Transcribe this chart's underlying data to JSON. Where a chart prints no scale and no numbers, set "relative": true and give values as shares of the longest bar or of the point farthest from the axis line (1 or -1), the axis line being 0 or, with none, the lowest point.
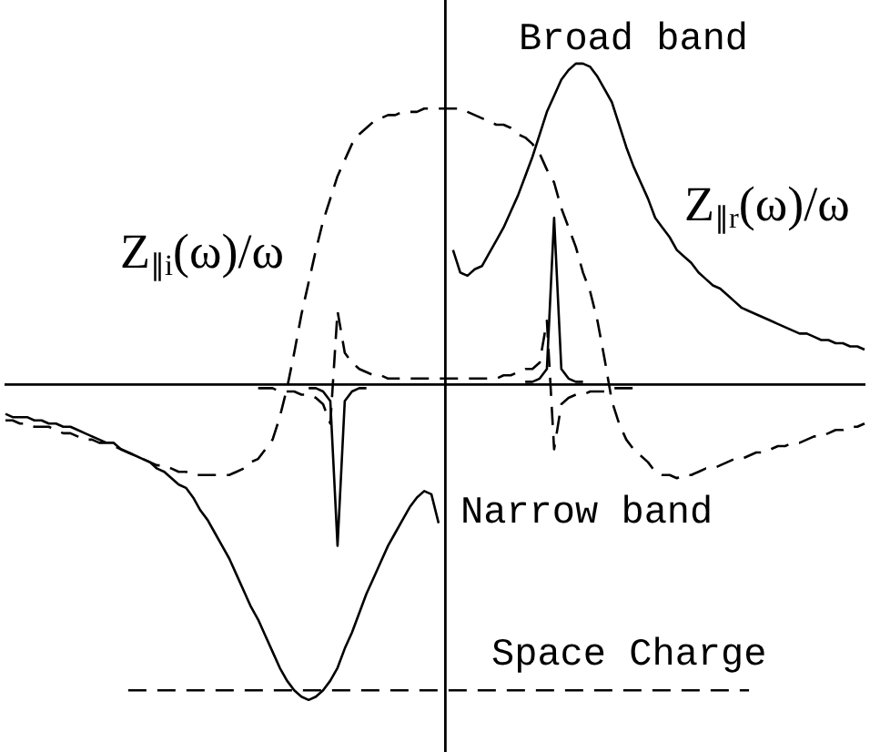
{
  "chart_data": {
    "type": "line",
    "relative": true,
    "marker": "none",
    "annotations": [
      "Broad band",
      "Narrow band"
    ],
    "categories": [
      null,
      null,
      null,
      null,
      null,
      null,
      null,
      null,
      null,
      null,
      null,
      null,
      null,
      null,
      null,
      null,
      null,
      null,
      null,
      null,
      null,
      null,
      null,
      null,
      null,
      null,
      null,
      null,
      null,
      null,
      null,
      null,
      null,
      null,
      null,
      null,
      null,
      null,
      null,
      null,
      null,
      null,
      null,
      null,
      null,
      null,
      null,
      null,
      null,
      null,
      null,
      null,
      null,
      null,
      null,
      null,
      null,
      null,
      null,
      null,
      null,
      null,
      null,
      null,
      null,
      null,
      null,
      null,
      null,
      null,
      null,
      null,
      null,
      null,
      null,
      null,
      null,
      null,
      null,
      null,
      null,
      null,
      null,
      null,
      null,
      null,
      null,
      null,
      null,
      null,
      null,
      null,
      null,
      null,
      null,
      null,
      null,
      null,
      null,
      null,
      null,
      null,
      null,
      null,
      null,
      null,
      null,
      null,
      null,
      null,
      null,
      null,
      null,
      null,
      null,
      null,
      null,
      null,
      null,
      null
    ],
    "series": [
      {
        "name": "Z$_{∥r}$(ω)/ω",
        "color": "#000000",
        "line_style": "solid",
        "values": [
          -0.09,
          -0.1,
          -0.1,
          -0.1,
          -0.11,
          -0.11,
          -0.12,
          -0.12,
          -0.13,
          -0.13,
          -0.14,
          -0.15,
          -0.16,
          -0.17,
          -0.18,
          -0.18,
          -0.2,
          -0.21,
          -0.22,
          -0.23,
          -0.24,
          -0.26,
          -0.27,
          -0.29,
          -0.31,
          -0.32,
          -0.35,
          -0.39,
          -0.42,
          -0.46,
          -0.5,
          -0.54,
          -0.59,
          -0.64,
          -0.69,
          -0.73,
          -0.78,
          -0.83,
          -0.88,
          -0.92,
          -0.95,
          -0.97,
          -0.98,
          -0.97,
          -0.95,
          -0.92,
          -0.88,
          -0.82,
          -0.77,
          -0.71,
          -0.65,
          -0.6,
          -0.55,
          -0.5,
          -0.46,
          -0.42,
          -0.38,
          -0.35,
          -0.33,
          -0.34,
          -0.43,
          null,
          0.42,
          0.35,
          0.34,
          0.36,
          0.37,
          0.41,
          0.45,
          0.49,
          0.54,
          0.59,
          0.65,
          0.71,
          0.78,
          0.85,
          0.9,
          0.95,
          0.98,
          1,
          1,
          0.99,
          0.96,
          0.92,
          0.88,
          0.81,
          0.74,
          0.68,
          0.63,
          0.58,
          0.52,
          0.49,
          0.46,
          0.42,
          0.4,
          0.38,
          0.35,
          0.33,
          0.31,
          0.3,
          0.28,
          0.26,
          0.24,
          0.23,
          0.22,
          0.21,
          0.2,
          0.19,
          0.18,
          0.17,
          0.16,
          0.16,
          0.15,
          0.14,
          0.14,
          0.13,
          0.13,
          0.12,
          0.12,
          0.11
        ]
      },
      {
        "name": "Z$_{∥i}$(ω)/ω",
        "color": "#000000",
        "line_style": "dashed",
        "values": [
          -0.11,
          -0.11,
          -0.12,
          -0.12,
          -0.13,
          -0.13,
          -0.13,
          -0.14,
          -0.15,
          -0.15,
          -0.16,
          -0.17,
          -0.17,
          -0.18,
          -0.18,
          -0.19,
          -0.2,
          -0.21,
          -0.22,
          -0.23,
          -0.24,
          -0.25,
          -0.25,
          -0.26,
          -0.27,
          -0.27,
          -0.28,
          -0.28,
          -0.28,
          -0.28,
          -0.28,
          -0.28,
          -0.27,
          -0.26,
          -0.24,
          -0.23,
          -0.2,
          -0.17,
          -0.1,
          -0.01,
          0.1,
          0.22,
          0.32,
          0.42,
          0.51,
          0.58,
          0.65,
          0.7,
          0.75,
          0.78,
          0.8,
          0.82,
          0.83,
          0.84,
          0.84,
          0.85,
          0.85,
          0.85,
          0.86,
          0.86,
          0.86,
          0.86,
          0.86,
          0.86,
          0.85,
          0.84,
          0.83,
          0.82,
          0.81,
          0.81,
          0.8,
          0.78,
          0.77,
          0.75,
          0.72,
          0.67,
          0.63,
          0.55,
          0.49,
          0.43,
          0.35,
          0.29,
          0.2,
          0.08,
          -0.05,
          -0.12,
          -0.17,
          -0.2,
          -0.22,
          -0.24,
          -0.27,
          -0.28,
          -0.28,
          -0.29,
          -0.28,
          -0.28,
          -0.27,
          -0.26,
          -0.26,
          -0.25,
          -0.24,
          -0.23,
          -0.23,
          -0.22,
          -0.21,
          -0.21,
          -0.2,
          -0.19,
          -0.19,
          -0.18,
          -0.18,
          -0.17,
          -0.16,
          -0.16,
          -0.15,
          -0.14,
          -0.14,
          -0.13,
          -0.13,
          -0.12
        ]
      },
      {
        "color": "#000000",
        "line_style": "solid",
        "values": [
          null,
          null,
          null,
          null,
          null,
          null,
          null,
          null,
          null,
          null,
          null,
          null,
          null,
          null,
          null,
          null,
          null,
          null,
          null,
          null,
          null,
          null,
          null,
          null,
          null,
          null,
          null,
          null,
          null,
          null,
          null,
          null,
          null,
          null,
          null,
          null,
          null,
          null,
          null,
          null,
          null,
          null,
          -0.01,
          -0.01,
          -0.02,
          -0.05,
          -0.5,
          -0.05,
          -0.02,
          -0.01,
          -0.01,
          null,
          null,
          null,
          null,
          null,
          null,
          null,
          null,
          null,
          null,
          null,
          null,
          null,
          null,
          null,
          null,
          null,
          null,
          null,
          null,
          null,
          0.01,
          0.01,
          0.02,
          0.05,
          0.52,
          0.05,
          0.02,
          0.01,
          0.01,
          null,
          null,
          null,
          null,
          null,
          null,
          null,
          null,
          null,
          null,
          null,
          null,
          null,
          null,
          null,
          null,
          null,
          null,
          null,
          null,
          null,
          null,
          null,
          null,
          null,
          null,
          null,
          null,
          null,
          null,
          null,
          null,
          null,
          null,
          null,
          null,
          null,
          null,
          null
        ]
      },
      {
        "color": "#000000",
        "line_style": "dashed",
        "values": [
          null,
          null,
          null,
          null,
          null,
          null,
          null,
          null,
          null,
          null,
          null,
          null,
          null,
          null,
          null,
          null,
          null,
          null,
          null,
          null,
          null,
          null,
          null,
          null,
          null,
          null,
          null,
          null,
          null,
          null,
          null,
          null,
          null,
          null,
          null,
          -0.01,
          -0.01,
          -0.01,
          -0.02,
          -0.02,
          -0.02,
          -0.03,
          -0.03,
          -0.04,
          -0.06,
          -0.12,
          0.23,
          0.1,
          0.07,
          0.05,
          0.04,
          0.03,
          0.03,
          0.02,
          0.02,
          0.02,
          0.02,
          0.02,
          0.02,
          0.02,
          0.02,
          0.02,
          0.02,
          0.02,
          0.02,
          0.02,
          0.02,
          0.02,
          0.02,
          0.03,
          0.03,
          0.04,
          0.05,
          0.05,
          0.07,
          0.2,
          -0.2,
          -0.06,
          -0.04,
          -0.03,
          -0.03,
          -0.02,
          -0.02,
          -0.02,
          -0.01,
          -0.01,
          -0.01,
          -0.01,
          null,
          null,
          null,
          null,
          null,
          null,
          null,
          null,
          null,
          null,
          null,
          null,
          null,
          null,
          null,
          null,
          null,
          null,
          null,
          null,
          null,
          null,
          null,
          null,
          null,
          null,
          null,
          null,
          null,
          null,
          null,
          null
        ]
      },
      {
        "name": "Space Charge",
        "color": "#000000",
        "line_style": "dashed",
        "values": [
          null,
          null,
          null,
          null,
          null,
          null,
          null,
          null,
          null,
          null,
          null,
          null,
          null,
          null,
          null,
          null,
          null,
          -0.95,
          -0.95,
          -0.95,
          -0.95,
          -0.95,
          -0.95,
          -0.95,
          -0.95,
          -0.95,
          -0.95,
          -0.95,
          -0.95,
          -0.95,
          -0.95,
          -0.95,
          -0.95,
          -0.95,
          -0.95,
          -0.95,
          -0.95,
          -0.95,
          -0.95,
          -0.95,
          -0.95,
          -0.95,
          -0.95,
          -0.95,
          -0.95,
          -0.95,
          -0.95,
          -0.95,
          -0.95,
          -0.95,
          -0.95,
          -0.95,
          -0.95,
          -0.95,
          -0.95,
          -0.95,
          -0.95,
          -0.95,
          -0.95,
          -0.95,
          -0.95,
          -0.95,
          -0.95,
          -0.95,
          -0.95,
          -0.95,
          -0.95,
          -0.95,
          -0.95,
          -0.95,
          -0.95,
          -0.95,
          -0.95,
          -0.95,
          -0.95,
          -0.95,
          -0.95,
          -0.95,
          -0.95,
          -0.95,
          -0.95,
          -0.95,
          -0.95,
          -0.95,
          -0.95,
          -0.95,
          -0.95,
          -0.95,
          -0.95,
          -0.95,
          -0.95,
          -0.95,
          -0.95,
          -0.95,
          -0.95,
          -0.95,
          -0.95,
          -0.95,
          -0.95,
          -0.95,
          -0.95,
          -0.95,
          -0.95,
          -0.95,
          null,
          null,
          null,
          null,
          null,
          null,
          null,
          null,
          null,
          null,
          null,
          null,
          null,
          null,
          null,
          null
        ]
      }
    ]
  }
}
